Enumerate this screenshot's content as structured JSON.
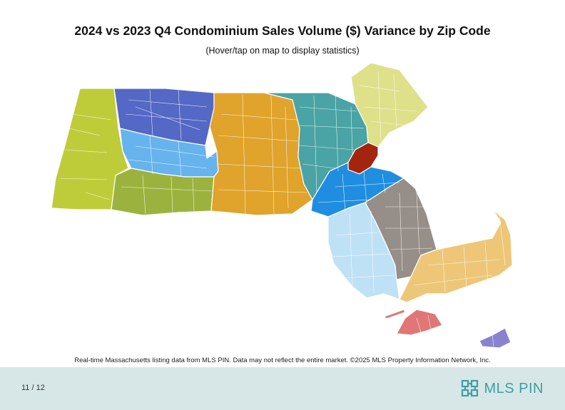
{
  "header": {
    "title": "2024 vs 2023 Q4 Condominium Sales Volume ($) Variance by Zip Code",
    "subtitle": "(Hover/tap on map to display statistics)"
  },
  "map": {
    "regions": [
      {
        "id": "berkshire",
        "color": "#bfcc3a"
      },
      {
        "id": "north-central-west",
        "color": "#5468c5"
      },
      {
        "id": "west-central",
        "color": "#66b3ee"
      },
      {
        "id": "pioneer-valley",
        "color": "#9bb33e"
      },
      {
        "id": "worcester",
        "color": "#e0a32b"
      },
      {
        "id": "middlesex",
        "color": "#4aa3a4"
      },
      {
        "id": "essex-north-shore",
        "color": "#dfe08a"
      },
      {
        "id": "boston-core",
        "color": "#a4250e"
      },
      {
        "id": "metro-south-west",
        "color": "#1f8ee0"
      },
      {
        "id": "south-shore",
        "color": "#968e88"
      },
      {
        "id": "bristol-southcoast",
        "color": "#bfe1f6"
      },
      {
        "id": "cape-cod",
        "color": "#eec678"
      },
      {
        "id": "marthas-vineyard",
        "color": "#e07676"
      },
      {
        "id": "nantucket",
        "color": "#8b82cf"
      }
    ]
  },
  "footnote": "Real-time Massachusetts listing data from MLS PIN. Data may not reflect the entire market. ©2025 MLS Property Information Network, Inc.",
  "footer": {
    "page": "11 / 12",
    "logo_text": "MLS PIN",
    "logo_color": "#3e9ea2",
    "background": "#d7e7e7"
  }
}
